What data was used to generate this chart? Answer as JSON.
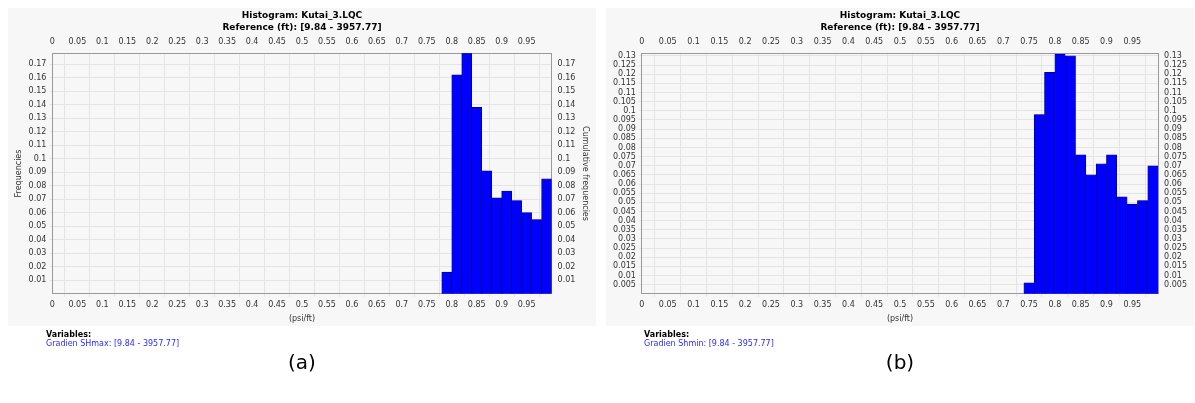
{
  "chart_data": [
    {
      "type": "histogram",
      "title": "Histogram: Kutai_3.LQC",
      "subtitle": "Reference (ft): [9.84 - 3957.77]",
      "xlabel": "(psi/ft)",
      "ylabel": "Frequencies",
      "y2label": "Cumulative frequencies",
      "bins": [
        0.78,
        0.8,
        0.82,
        0.84,
        0.86,
        0.88,
        0.9,
        0.92,
        0.94,
        0.96,
        0.98,
        1.0
      ],
      "values": [
        0.016,
        0.162,
        0.178,
        0.138,
        0.091,
        0.071,
        0.076,
        0.069,
        0.06,
        0.055,
        0.085
      ],
      "color": "#0000ff",
      "xlim": [
        0,
        1.0
      ],
      "xticks": [
        0,
        0.05,
        0.1,
        0.15,
        0.2,
        0.25,
        0.3,
        0.35,
        0.4,
        0.45,
        0.5,
        0.55,
        0.6,
        0.65,
        0.7,
        0.75,
        0.8,
        0.85,
        0.9,
        0.95
      ],
      "x2lim": [
        0,
        1.0
      ],
      "x2ticks": [
        0,
        0.05,
        0.1,
        0.15,
        0.2,
        0.25,
        0.3,
        0.35,
        0.4,
        0.45,
        0.5,
        0.55,
        0.6,
        0.65,
        0.7,
        0.75,
        0.8,
        0.85,
        0.9,
        0.95
      ],
      "ylim": [
        0,
        0.178
      ],
      "yticks": [
        0.01,
        0.02,
        0.03,
        0.04,
        0.05,
        0.06,
        0.07,
        0.08,
        0.09,
        0.1,
        0.11,
        0.12,
        0.13,
        0.14,
        0.15,
        0.16,
        0.17
      ],
      "y2lim": [
        0,
        0.178
      ],
      "y2ticks": [
        0.01,
        0.02,
        0.03,
        0.04,
        0.05,
        0.06,
        0.07,
        0.08,
        0.09,
        0.1,
        0.11,
        0.12,
        0.13,
        0.14,
        0.15,
        0.16,
        0.17
      ],
      "grid": true,
      "legend": false,
      "annotations": [
        "Variables:",
        "Gradien SHmax: [9.84 - 3957.77]",
        "(a)"
      ]
    },
    {
      "type": "histogram",
      "title": "Histogram: Kutai_3.LQC",
      "subtitle": "Reference (ft): [9.84 - 3957.77]",
      "xlabel": "(psi/ft)",
      "bins": [
        0.74,
        0.76,
        0.78,
        0.8,
        0.82,
        0.84,
        0.86,
        0.88,
        0.9,
        0.92,
        0.94,
        0.96,
        0.98,
        1.0
      ],
      "values": [
        0.006,
        0.098,
        0.121,
        0.131,
        0.13,
        0.076,
        0.065,
        0.071,
        0.076,
        0.053,
        0.049,
        0.051,
        0.07
      ],
      "color": "#0000ff",
      "xlim": [
        0,
        1.0
      ],
      "xticks": [
        0,
        0.05,
        0.1,
        0.15,
        0.2,
        0.25,
        0.3,
        0.35,
        0.4,
        0.45,
        0.5,
        0.55,
        0.6,
        0.65,
        0.7,
        0.75,
        0.8,
        0.85,
        0.9,
        0.95
      ],
      "x2lim": [
        0,
        1.0
      ],
      "x2ticks": [
        0,
        0.05,
        0.1,
        0.15,
        0.2,
        0.25,
        0.3,
        0.35,
        0.4,
        0.45,
        0.5,
        0.55,
        0.6,
        0.65,
        0.7,
        0.75,
        0.8,
        0.85,
        0.9,
        0.95
      ],
      "ylim": [
        0,
        0.1315
      ],
      "yticks": [
        0.005,
        0.01,
        0.015,
        0.02,
        0.025,
        0.03,
        0.035,
        0.04,
        0.045,
        0.05,
        0.055,
        0.06,
        0.065,
        0.07,
        0.075,
        0.08,
        0.085,
        0.09,
        0.095,
        0.1,
        0.105,
        0.11,
        0.115,
        0.12,
        0.125,
        0.13
      ],
      "y2lim": [
        0,
        0.1315
      ],
      "y2ticks": [
        0.005,
        0.01,
        0.015,
        0.02,
        0.025,
        0.03,
        0.035,
        0.04,
        0.045,
        0.05,
        0.055,
        0.06,
        0.065,
        0.07,
        0.075,
        0.08,
        0.085,
        0.09,
        0.095,
        0.1,
        0.105,
        0.11,
        0.115,
        0.12,
        0.125,
        0.13
      ],
      "grid": true,
      "legend": false,
      "annotations": [
        "Variables:",
        "Gradien Shmin: [9.84 - 3957.77]",
        "(b)"
      ]
    }
  ]
}
